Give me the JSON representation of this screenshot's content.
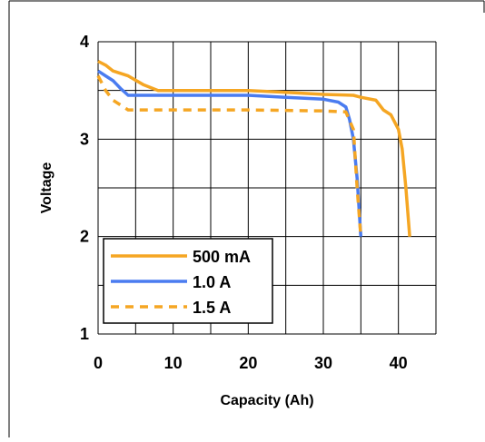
{
  "chart_data": {
    "type": "line",
    "title": "",
    "xlabel": "Capacity (Ah)",
    "ylabel": "Voltage",
    "xlim": [
      0,
      45
    ],
    "ylim": [
      1,
      4
    ],
    "x_ticks": [
      "0",
      "10",
      "20",
      "30",
      "40"
    ],
    "y_ticks": [
      "1",
      "2",
      "3",
      "4"
    ],
    "grid": true,
    "legend_position": "bottom-left",
    "series": [
      {
        "name": "500 mA",
        "color": "#f5a623",
        "dash": "solid",
        "points": [
          [
            0,
            3.8
          ],
          [
            1,
            3.76
          ],
          [
            2,
            3.7
          ],
          [
            4,
            3.65
          ],
          [
            6,
            3.56
          ],
          [
            8,
            3.5
          ],
          [
            12,
            3.5
          ],
          [
            20,
            3.5
          ],
          [
            25,
            3.48
          ],
          [
            30,
            3.46
          ],
          [
            34,
            3.45
          ],
          [
            35,
            3.43
          ],
          [
            37,
            3.4
          ],
          [
            38,
            3.3
          ],
          [
            39,
            3.25
          ],
          [
            40,
            3.1
          ],
          [
            40.5,
            2.9
          ],
          [
            41,
            2.5
          ],
          [
            41.5,
            2.0
          ]
        ]
      },
      {
        "name": "1.0 A",
        "color": "#4a7cf0",
        "dash": "solid",
        "points": [
          [
            0,
            3.7
          ],
          [
            1,
            3.65
          ],
          [
            2,
            3.6
          ],
          [
            3,
            3.52
          ],
          [
            4,
            3.45
          ],
          [
            10,
            3.45
          ],
          [
            20,
            3.45
          ],
          [
            25,
            3.43
          ],
          [
            30,
            3.41
          ],
          [
            32,
            3.38
          ],
          [
            33,
            3.33
          ],
          [
            33.5,
            3.2
          ],
          [
            34,
            3.0
          ],
          [
            34.5,
            2.6
          ],
          [
            35,
            2.0
          ]
        ]
      },
      {
        "name": "1.5 A",
        "color": "#f5a623",
        "dash": "dashed",
        "points": [
          [
            0,
            3.65
          ],
          [
            1,
            3.5
          ],
          [
            2,
            3.4
          ],
          [
            3,
            3.35
          ],
          [
            4,
            3.3
          ],
          [
            10,
            3.3
          ],
          [
            20,
            3.3
          ],
          [
            30,
            3.29
          ],
          [
            33,
            3.28
          ],
          [
            34,
            3.1
          ],
          [
            34.5,
            2.5
          ],
          [
            35,
            2.0
          ]
        ]
      }
    ]
  }
}
